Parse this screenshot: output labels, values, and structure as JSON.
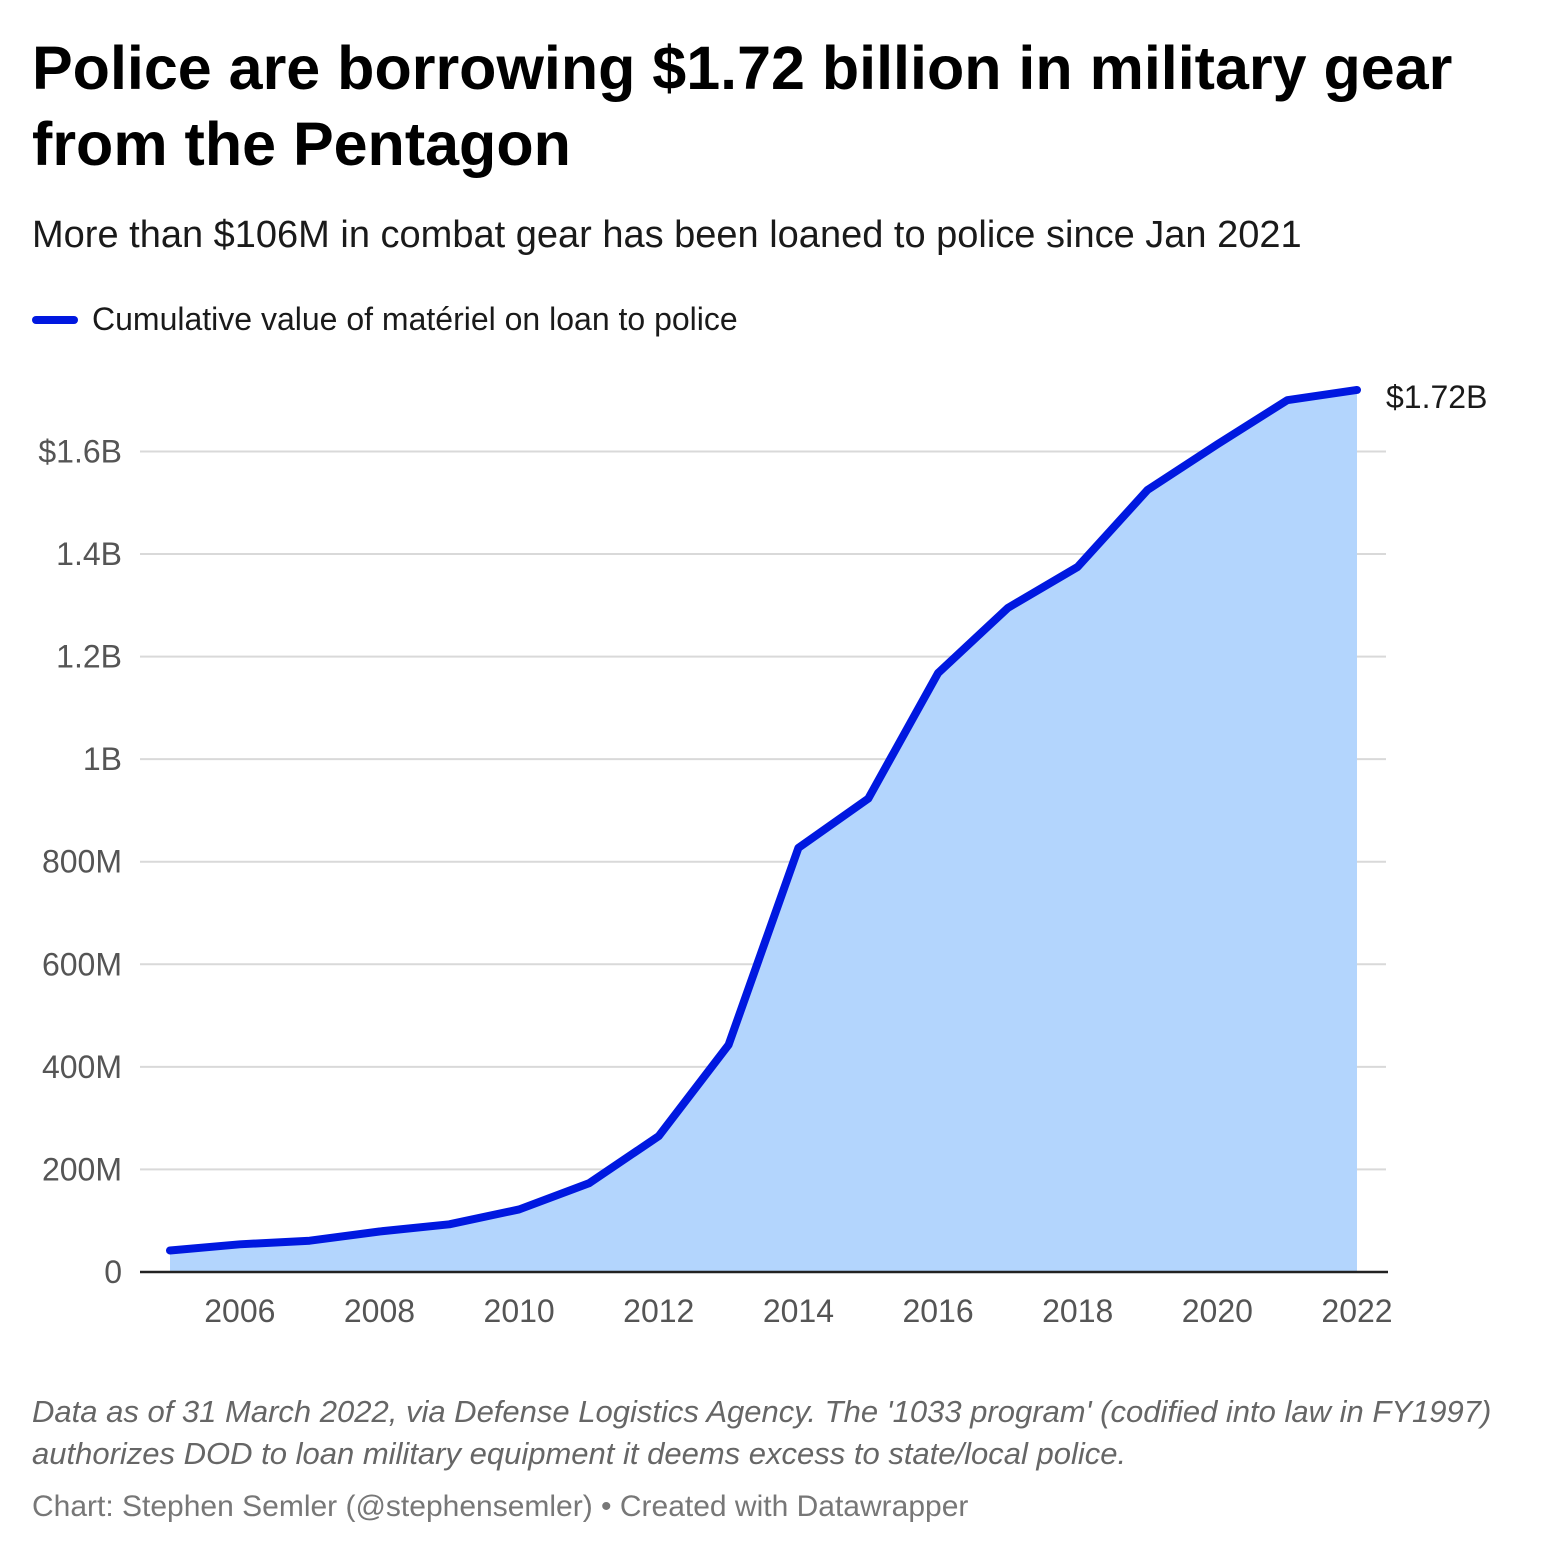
{
  "title": "Police are borrowing $1.72 billion in military gear from the Pentagon",
  "subtitle": "More than $106M in combat gear has been loaned to police since Jan 2021",
  "notes": "Data as of 31 March 2022, via Defense Logistics Agency. The '1033 program' (codified into law in FY1997) authorizes DOD to loan military equipment it deems excess to state/local police.",
  "credit": "Chart: Stephen Semler (@stephensemler) • Created with Datawrapper",
  "colors": {
    "line": "#0018e0",
    "area": "#b3d5fd",
    "grid": "#d9d9d9",
    "axis": "#222222"
  },
  "chart_data": {
    "type": "area",
    "series": [
      {
        "name": "Cumulative value of matériel on loan to police",
        "x": [
          2005,
          2006,
          2007,
          2008,
          2009,
          2010,
          2011,
          2012,
          2013,
          2014,
          2015,
          2016,
          2017,
          2018,
          2019,
          2020,
          2021,
          2022
        ],
        "values": [
          42000000,
          54000000,
          61000000,
          79000000,
          93000000,
          122000000,
          173000000,
          265000000,
          443000000,
          827000000,
          923000000,
          1168000000,
          1295000000,
          1375000000,
          1525000000,
          1614000000,
          1700000000,
          1720000000
        ]
      }
    ],
    "end_label": "$1.72B",
    "ylim": [
      0,
      1720000000
    ],
    "yticks": [
      {
        "value": 0,
        "label": "0"
      },
      {
        "value": 200000000,
        "label": "200M"
      },
      {
        "value": 400000000,
        "label": "400M"
      },
      {
        "value": 600000000,
        "label": "600M"
      },
      {
        "value": 800000000,
        "label": "800M"
      },
      {
        "value": 1000000000,
        "label": "1B"
      },
      {
        "value": 1200000000,
        "label": "1.2B"
      },
      {
        "value": 1400000000,
        "label": "1.4B"
      },
      {
        "value": 1600000000,
        "label": "$1.6B"
      }
    ],
    "xticks": [
      2006,
      2008,
      2010,
      2012,
      2014,
      2016,
      2018,
      2020,
      2022
    ],
    "grid": true,
    "legend": "top-left",
    "xlabel": "",
    "ylabel": ""
  }
}
